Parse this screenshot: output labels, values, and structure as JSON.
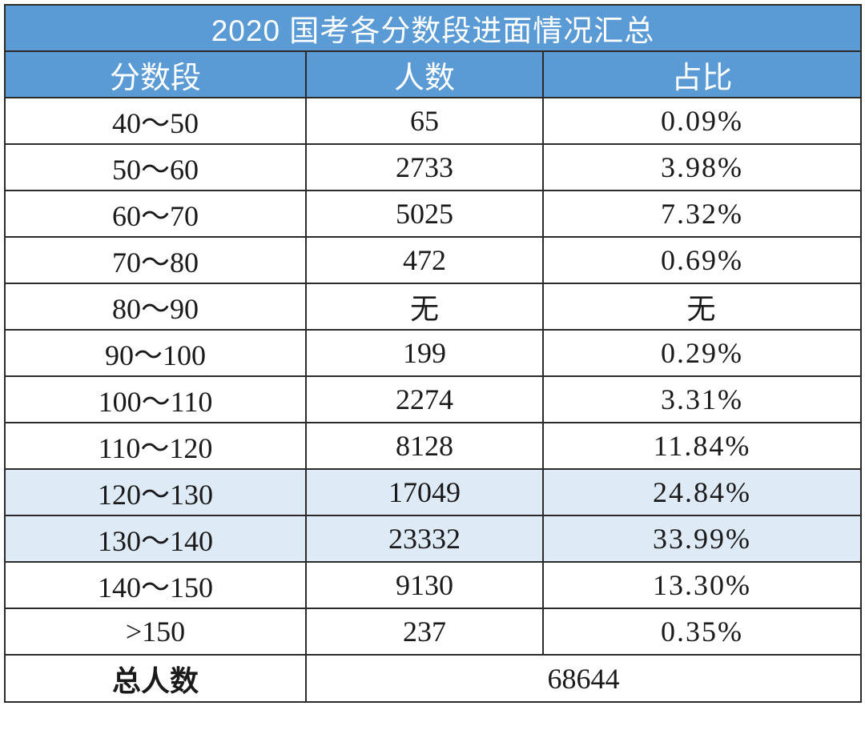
{
  "title": "2020 国考各分数段进面情况汇总",
  "headers": [
    "分数段",
    "人数",
    "占比"
  ],
  "rows": [
    {
      "range": "40～50",
      "count": "65",
      "pct": "0.09%",
      "highlight": false
    },
    {
      "range": "50～60",
      "count": "2733",
      "pct": "3.98%",
      "highlight": false
    },
    {
      "range": "60～70",
      "count": "5025",
      "pct": "7.32%",
      "highlight": false
    },
    {
      "range": "70～80",
      "count": "472",
      "pct": "0.69%",
      "highlight": false
    },
    {
      "range": "80～90",
      "count": "无",
      "pct": "无",
      "highlight": false
    },
    {
      "range": "90～100",
      "count": "199",
      "pct": "0.29%",
      "highlight": false
    },
    {
      "range": "100～110",
      "count": "2274",
      "pct": "3.31%",
      "highlight": false
    },
    {
      "range": "110～120",
      "count": "8128",
      "pct": "11.84%",
      "highlight": false
    },
    {
      "range": "120～130",
      "count": "17049",
      "pct": "24.84%",
      "highlight": true
    },
    {
      "range": "130～140",
      "count": "23332",
      "pct": "33.99%",
      "highlight": true
    },
    {
      "range": "140～150",
      "count": "9130",
      "pct": "13.30%",
      "highlight": false
    },
    {
      "range": ">150",
      "count": "237",
      "pct": "0.35%",
      "highlight": false
    }
  ],
  "total": {
    "label": "总人数",
    "value": "68644"
  },
  "colors": {
    "header_bg": "#5b9bd5",
    "highlight_bg": "#deeaf6",
    "border": "#2b2b2b"
  }
}
